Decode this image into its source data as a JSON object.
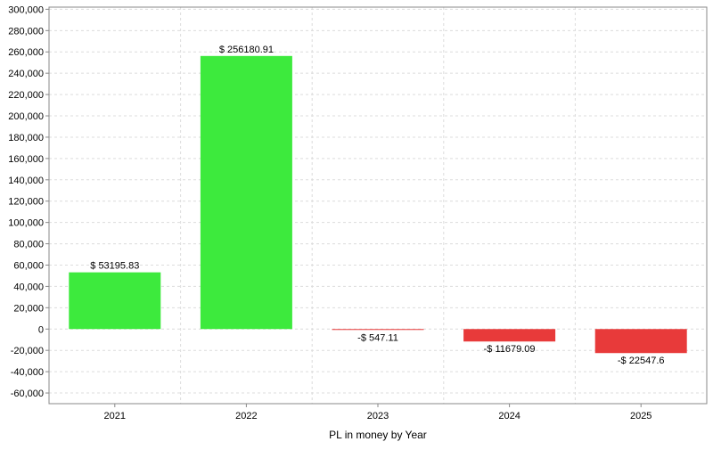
{
  "chart_data": {
    "type": "bar",
    "title": "",
    "xlabel": "PL in money by Year",
    "ylabel": "",
    "categories": [
      "2021",
      "2022",
      "2023",
      "2024",
      "2025"
    ],
    "values": [
      53195.83,
      256180.91,
      -547.11,
      -11679.09,
      -22547.6
    ],
    "data_labels": [
      "$ 53195.83",
      "$ 256180.91",
      "-$ 547.11",
      "-$ 11679.09",
      "-$ 22547.6"
    ],
    "ylim": [
      -70000,
      302000
    ],
    "yticks": [
      -60000,
      -40000,
      -20000,
      0,
      20000,
      40000,
      60000,
      80000,
      100000,
      120000,
      140000,
      160000,
      180000,
      200000,
      220000,
      240000,
      260000,
      280000,
      300000
    ],
    "ytick_labels": [
      "-60,000",
      "-40,000",
      "-20,000",
      "0",
      "20,000",
      "40,000",
      "60,000",
      "80,000",
      "100,000",
      "120,000",
      "140,000",
      "160,000",
      "180,000",
      "200,000",
      "220,000",
      "240,000",
      "260,000",
      "280,000",
      "300,000"
    ],
    "grid": true,
    "legend": false,
    "colors": {
      "positive": "#3dea3d",
      "negative": "#e83a3a",
      "grid": "#dcdcdc",
      "axis": "#888888",
      "text": "#000000"
    }
  }
}
